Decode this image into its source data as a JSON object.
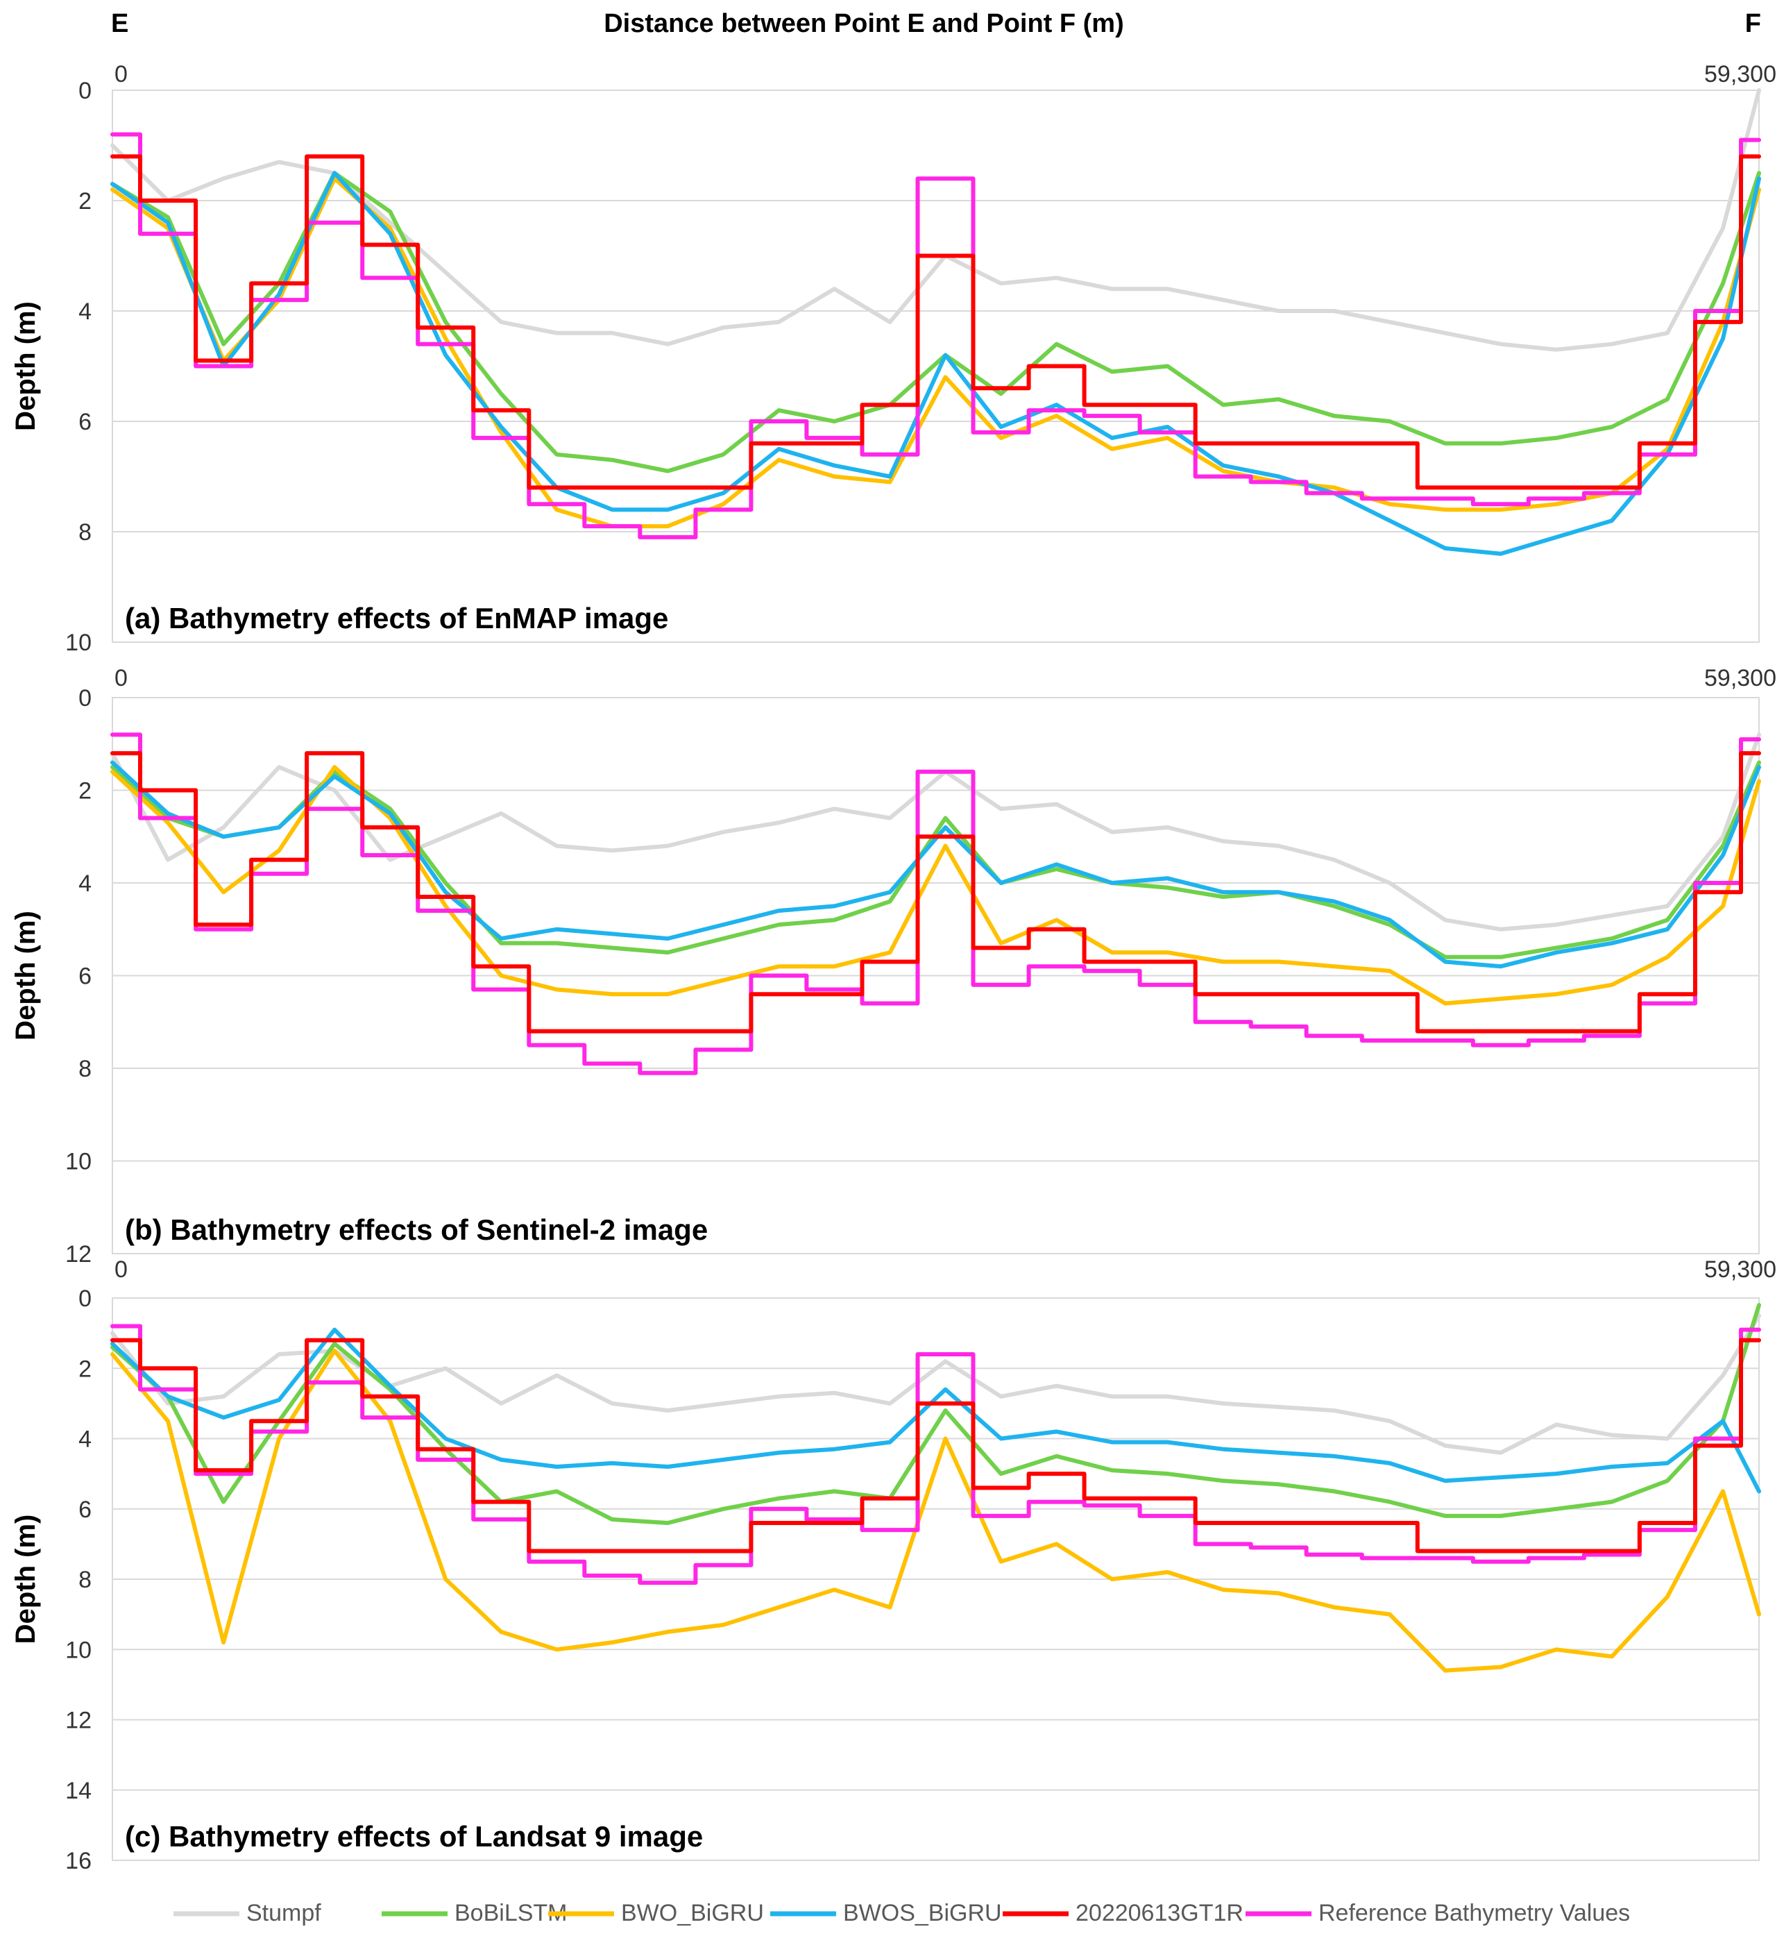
{
  "header": {
    "left_label": "E",
    "right_label": "F",
    "title": "Distance between Point E and Point F (m)"
  },
  "legend": [
    {
      "name": "Stumpf",
      "color": "#d9d9d9"
    },
    {
      "name": "BoBiLSTM",
      "color": "#70d04a"
    },
    {
      "name": "BWO_BiGRU",
      "color": "#ffc000"
    },
    {
      "name": "BWOS_BiGRU",
      "color": "#1fb3ee"
    },
    {
      "name": "20220613GT1R",
      "color": "#ff0000"
    },
    {
      "name": "Reference Bathymetry Values",
      "color": "#ff26e6"
    }
  ],
  "chart_data": [
    {
      "type": "line",
      "title": "(a) Bathymetry effects of EnMAP image",
      "xlabel": "Distance between Point E and Point F (m)",
      "ylabel": "Depth (m)",
      "x_tick_labels": [
        "0",
        "59,300"
      ],
      "xlim": [
        0,
        59300
      ],
      "ylim": [
        0,
        10
      ],
      "y_inverted": true,
      "y_ticks": [
        0,
        2,
        4,
        6,
        8,
        10
      ],
      "x": [
        0,
        2000,
        4000,
        6000,
        8000,
        10000,
        12000,
        14000,
        16000,
        18000,
        20000,
        22000,
        24000,
        26000,
        28000,
        30000,
        32000,
        34000,
        36000,
        38000,
        40000,
        42000,
        44000,
        46000,
        48000,
        50000,
        52000,
        54000,
        56000,
        58000,
        59300
      ],
      "series": [
        {
          "name": "Stumpf",
          "values": [
            1.0,
            2.0,
            1.6,
            1.3,
            1.5,
            2.4,
            3.3,
            4.2,
            4.4,
            4.4,
            4.6,
            4.3,
            4.2,
            3.6,
            4.2,
            3.0,
            3.5,
            3.4,
            3.6,
            3.6,
            3.8,
            4.0,
            4.0,
            4.2,
            4.4,
            4.6,
            4.7,
            4.6,
            4.4,
            2.5,
            0.0
          ]
        },
        {
          "name": "BoBiLSTM",
          "values": [
            1.7,
            2.3,
            4.6,
            3.5,
            1.5,
            2.2,
            4.2,
            5.5,
            6.6,
            6.7,
            6.9,
            6.6,
            5.8,
            6.0,
            5.7,
            4.8,
            5.5,
            4.6,
            5.1,
            5.0,
            5.7,
            5.6,
            5.9,
            6.0,
            6.4,
            6.4,
            6.3,
            6.1,
            5.6,
            3.5,
            1.5
          ]
        },
        {
          "name": "BWO_BiGRU",
          "values": [
            1.8,
            2.5,
            4.9,
            3.8,
            1.6,
            2.5,
            4.5,
            6.2,
            7.6,
            7.9,
            7.9,
            7.5,
            6.7,
            7.0,
            7.1,
            5.2,
            6.3,
            5.9,
            6.5,
            6.3,
            6.9,
            7.1,
            7.2,
            7.5,
            7.6,
            7.6,
            7.5,
            7.3,
            6.5,
            4.2,
            1.8
          ]
        },
        {
          "name": "BWOS_BiGRU",
          "values": [
            1.7,
            2.4,
            5.0,
            3.7,
            1.5,
            2.6,
            4.8,
            6.1,
            7.2,
            7.6,
            7.6,
            7.3,
            6.5,
            6.8,
            7.0,
            4.8,
            6.1,
            5.7,
            6.3,
            6.1,
            6.8,
            7.0,
            7.3,
            7.8,
            8.3,
            8.4,
            8.1,
            7.8,
            6.6,
            4.5,
            1.6
          ]
        },
        {
          "name": "20220613GT1R",
          "values": [
            1.2,
            2.0,
            4.9,
            3.5,
            1.2,
            2.8,
            4.3,
            5.8,
            7.2,
            7.2,
            7.2,
            7.2,
            6.4,
            6.4,
            5.7,
            3.0,
            5.4,
            5.0,
            5.7,
            5.7,
            6.4,
            6.4,
            6.4,
            6.4,
            7.2,
            7.2,
            7.2,
            7.2,
            6.4,
            4.2,
            1.2
          ]
        },
        {
          "name": "Reference Bathymetry Values",
          "values": [
            0.8,
            2.6,
            5.0,
            3.8,
            2.4,
            3.4,
            4.6,
            6.3,
            7.5,
            7.9,
            8.1,
            7.6,
            6.0,
            6.3,
            6.6,
            1.6,
            6.2,
            5.8,
            5.9,
            6.2,
            7.0,
            7.1,
            7.3,
            7.4,
            7.4,
            7.5,
            7.4,
            7.3,
            6.6,
            4.0,
            0.9
          ]
        }
      ]
    },
    {
      "type": "line",
      "title": "(b) Bathymetry effects of Sentinel-2 image",
      "xlabel": "Distance between Point E and Point F (m)",
      "ylabel": "Depth (m)",
      "x_tick_labels": [
        "0",
        "59,300"
      ],
      "xlim": [
        0,
        59300
      ],
      "ylim": [
        0,
        12
      ],
      "y_inverted": true,
      "y_ticks": [
        0,
        2,
        4,
        6,
        8,
        10,
        12
      ],
      "x": [
        0,
        2000,
        4000,
        6000,
        8000,
        10000,
        12000,
        14000,
        16000,
        18000,
        20000,
        22000,
        24000,
        26000,
        28000,
        30000,
        32000,
        34000,
        36000,
        38000,
        40000,
        42000,
        44000,
        46000,
        48000,
        50000,
        52000,
        54000,
        56000,
        58000,
        59300
      ],
      "series": [
        {
          "name": "Stumpf",
          "values": [
            1.2,
            3.5,
            2.8,
            1.5,
            2.0,
            3.5,
            3.0,
            2.5,
            3.2,
            3.3,
            3.2,
            2.9,
            2.7,
            2.4,
            2.6,
            1.6,
            2.4,
            2.3,
            2.9,
            2.8,
            3.1,
            3.2,
            3.5,
            4.0,
            4.8,
            5.0,
            4.9,
            4.7,
            4.5,
            3.0,
            0.8
          ]
        },
        {
          "name": "BoBiLSTM",
          "values": [
            1.5,
            2.6,
            3.0,
            2.8,
            1.6,
            2.4,
            4.0,
            5.3,
            5.3,
            5.4,
            5.5,
            5.2,
            4.9,
            4.8,
            4.4,
            2.6,
            4.0,
            3.7,
            4.0,
            4.1,
            4.3,
            4.2,
            4.5,
            4.9,
            5.6,
            5.6,
            5.4,
            5.2,
            4.8,
            3.2,
            1.4
          ]
        },
        {
          "name": "BWO_BiGRU",
          "values": [
            1.6,
            2.7,
            4.2,
            3.3,
            1.5,
            2.6,
            4.5,
            6.0,
            6.3,
            6.4,
            6.4,
            6.1,
            5.8,
            5.8,
            5.5,
            3.2,
            5.3,
            4.8,
            5.5,
            5.5,
            5.7,
            5.7,
            5.8,
            5.9,
            6.6,
            6.5,
            6.4,
            6.2,
            5.6,
            4.5,
            1.8
          ]
        },
        {
          "name": "BWOS_BiGRU",
          "values": [
            1.4,
            2.5,
            3.0,
            2.8,
            1.7,
            2.5,
            4.2,
            5.2,
            5.0,
            5.1,
            5.2,
            4.9,
            4.6,
            4.5,
            4.2,
            2.8,
            4.0,
            3.6,
            4.0,
            3.9,
            4.2,
            4.2,
            4.4,
            4.8,
            5.7,
            5.8,
            5.5,
            5.3,
            5.0,
            3.4,
            1.5
          ]
        },
        {
          "name": "20220613GT1R",
          "values": [
            1.2,
            2.0,
            4.9,
            3.5,
            1.2,
            2.8,
            4.3,
            5.8,
            7.2,
            7.2,
            7.2,
            7.2,
            6.4,
            6.4,
            5.7,
            3.0,
            5.4,
            5.0,
            5.7,
            5.7,
            6.4,
            6.4,
            6.4,
            6.4,
            7.2,
            7.2,
            7.2,
            7.2,
            6.4,
            4.2,
            1.2
          ]
        },
        {
          "name": "Reference Bathymetry Values",
          "values": [
            0.8,
            2.6,
            5.0,
            3.8,
            2.4,
            3.4,
            4.6,
            6.3,
            7.5,
            7.9,
            8.1,
            7.6,
            6.0,
            6.3,
            6.6,
            1.6,
            6.2,
            5.8,
            5.9,
            6.2,
            7.0,
            7.1,
            7.3,
            7.4,
            7.4,
            7.5,
            7.4,
            7.3,
            6.6,
            4.0,
            0.9
          ]
        }
      ]
    },
    {
      "type": "line",
      "title": "(c)  Bathymetry effects of Landsat 9 image",
      "xlabel": "Distance between Point E and Point F (m)",
      "ylabel": "Depth (m)",
      "x_tick_labels": [
        "0",
        "59,300"
      ],
      "xlim": [
        0,
        59300
      ],
      "ylim": [
        0,
        16
      ],
      "y_inverted": true,
      "y_ticks": [
        0,
        2,
        4,
        6,
        8,
        10,
        12,
        14,
        16
      ],
      "x": [
        0,
        2000,
        4000,
        6000,
        8000,
        10000,
        12000,
        14000,
        16000,
        18000,
        20000,
        22000,
        24000,
        26000,
        28000,
        30000,
        32000,
        34000,
        36000,
        38000,
        40000,
        42000,
        44000,
        46000,
        48000,
        50000,
        52000,
        54000,
        56000,
        58000,
        59300
      ],
      "series": [
        {
          "name": "Stumpf",
          "values": [
            1.0,
            3.0,
            2.8,
            1.6,
            1.5,
            2.5,
            2.0,
            3.0,
            2.2,
            3.0,
            3.2,
            3.0,
            2.8,
            2.7,
            3.0,
            1.8,
            2.8,
            2.5,
            2.8,
            2.8,
            3.0,
            3.1,
            3.2,
            3.5,
            4.2,
            4.4,
            3.6,
            3.9,
            4.0,
            2.2,
            0.5
          ]
        },
        {
          "name": "BoBiLSTM",
          "values": [
            1.4,
            2.8,
            5.8,
            3.5,
            1.3,
            2.6,
            4.3,
            5.8,
            5.5,
            6.3,
            6.4,
            6.0,
            5.7,
            5.5,
            5.7,
            3.2,
            5.0,
            4.5,
            4.9,
            5.0,
            5.2,
            5.3,
            5.5,
            5.8,
            6.2,
            6.2,
            6.0,
            5.8,
            5.2,
            3.5,
            0.2
          ]
        },
        {
          "name": "BWO_BiGRU",
          "values": [
            1.6,
            3.5,
            9.8,
            4.0,
            1.5,
            3.5,
            8.0,
            9.5,
            10.0,
            9.8,
            9.5,
            9.3,
            8.8,
            8.3,
            8.8,
            4.0,
            7.5,
            7.0,
            8.0,
            7.8,
            8.3,
            8.4,
            8.8,
            9.0,
            10.6,
            10.5,
            10.0,
            10.2,
            8.5,
            5.5,
            9.0
          ]
        },
        {
          "name": "BWOS_BiGRU",
          "values": [
            1.3,
            2.8,
            3.4,
            2.9,
            0.9,
            2.5,
            4.0,
            4.6,
            4.8,
            4.7,
            4.8,
            4.6,
            4.4,
            4.3,
            4.1,
            2.6,
            4.0,
            3.8,
            4.1,
            4.1,
            4.3,
            4.4,
            4.5,
            4.7,
            5.2,
            5.1,
            5.0,
            4.8,
            4.7,
            3.5,
            5.5
          ]
        },
        {
          "name": "20220613GT1R",
          "values": [
            1.2,
            2.0,
            4.9,
            3.5,
            1.2,
            2.8,
            4.3,
            5.8,
            7.2,
            7.2,
            7.2,
            7.2,
            6.4,
            6.4,
            5.7,
            3.0,
            5.4,
            5.0,
            5.7,
            5.7,
            6.4,
            6.4,
            6.4,
            6.4,
            7.2,
            7.2,
            7.2,
            7.2,
            6.4,
            4.2,
            1.2
          ]
        },
        {
          "name": "Reference Bathymetry Values",
          "values": [
            0.8,
            2.6,
            5.0,
            3.8,
            2.4,
            3.4,
            4.6,
            6.3,
            7.5,
            7.9,
            8.1,
            7.6,
            6.0,
            6.3,
            6.6,
            1.6,
            6.2,
            5.8,
            5.9,
            6.2,
            7.0,
            7.1,
            7.3,
            7.4,
            7.4,
            7.5,
            7.4,
            7.3,
            6.6,
            4.0,
            0.9
          ]
        }
      ]
    }
  ]
}
